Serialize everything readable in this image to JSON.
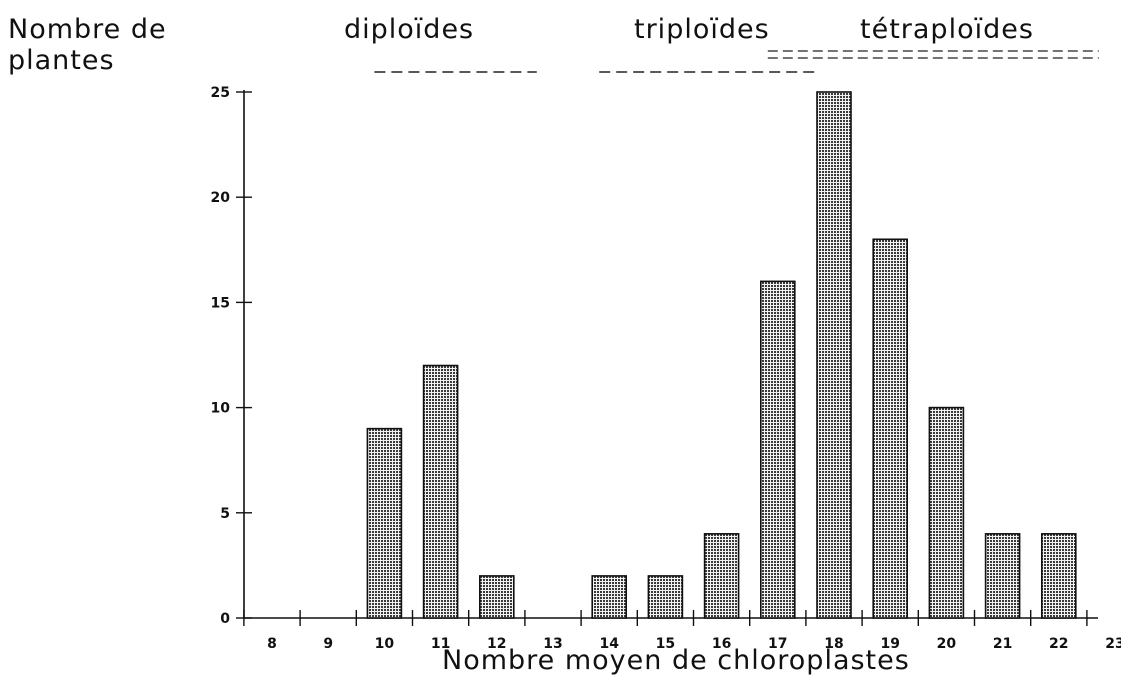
{
  "chart_data": {
    "type": "bar",
    "title": "",
    "ylabel_lines": [
      "Nombre de",
      "plantes"
    ],
    "xlabel": "Nombre moyen de chloroplastes",
    "categories": [
      "8",
      "9",
      "10",
      "11",
      "12",
      "13",
      "14",
      "15",
      "16",
      "17",
      "18",
      "19",
      "20",
      "21",
      "22",
      "23"
    ],
    "values": [
      0,
      0,
      9,
      12,
      2,
      0,
      2,
      2,
      4,
      16,
      25,
      18,
      10,
      4,
      4,
      0
    ],
    "bar_data_labels": [
      "9",
      "12",
      "2",
      "2",
      "2",
      "4",
      "16",
      "25",
      "18",
      "10",
      "4",
      "4"
    ],
    "yticks": [
      0,
      5,
      10,
      15,
      20,
      25
    ],
    "ylim": [
      0,
      25
    ],
    "grid": false,
    "groups": [
      {
        "label": "diploïdes",
        "from": "10",
        "to": "12",
        "underline": "dashed"
      },
      {
        "label": "triploïdes",
        "from": "14",
        "to": "17",
        "underline": "dashed"
      },
      {
        "label": "tétraploïdes",
        "from": "17",
        "to": "22",
        "underline": "double"
      }
    ],
    "colors": {
      "bar_fill": "#9a9a9a",
      "bar_stroke": "#111111",
      "axis": "#111111"
    }
  }
}
